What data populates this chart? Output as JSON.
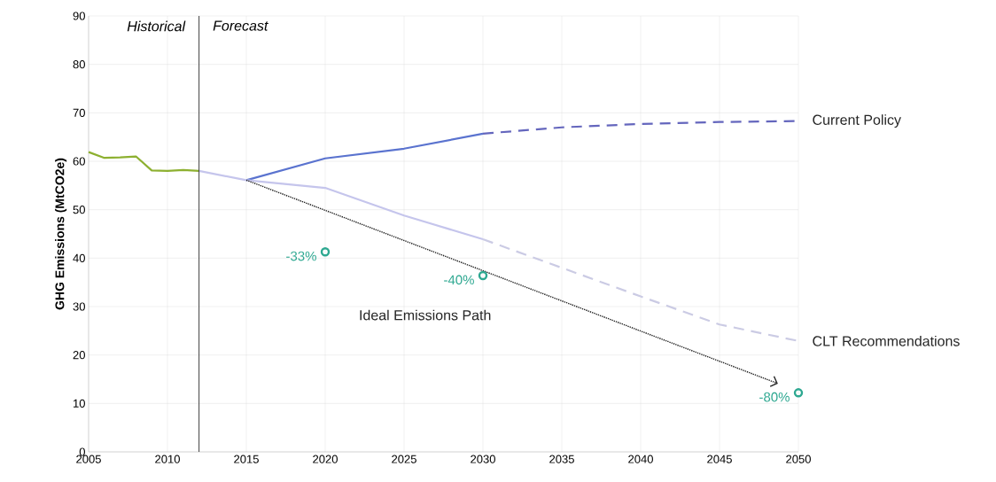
{
  "chart_data": {
    "type": "line",
    "ylabel": "GHG Emissions (MtCO2e)",
    "xlim": [
      2005,
      2050
    ],
    "ylim": [
      0,
      90
    ],
    "xticks": [
      2005,
      2010,
      2015,
      2020,
      2025,
      2030,
      2035,
      2040,
      2045,
      2050
    ],
    "yticks": [
      0,
      10,
      20,
      30,
      40,
      50,
      60,
      70,
      80,
      90
    ],
    "grid": true,
    "ref_lines": [
      {
        "axis": "x",
        "value": 2012,
        "color": "#404040"
      }
    ],
    "annotations": [
      "Historical",
      "Forecast",
      {
        "text": "-33%",
        "x": 2020,
        "y": 41.3
      },
      {
        "text": "-40%",
        "x": 2030,
        "y": 36.4
      },
      {
        "text": "-80%",
        "x": 2050,
        "y": 12.2
      }
    ],
    "series": [
      {
        "color": "#8db030",
        "line_style": "solid",
        "marker": "none",
        "x": [
          2005,
          2006,
          2007,
          2008,
          2009,
          2010,
          2011,
          2012
        ],
        "values": [
          61.9,
          60.7,
          60.8,
          61.0,
          58.1,
          58.0,
          58.2,
          58.0
        ]
      },
      {
        "color": "#5a73cf",
        "line_style": "solid",
        "marker": "none",
        "x": [
          2015,
          2020,
          2025,
          2030
        ],
        "values": [
          56.1,
          60.6,
          62.6,
          65.7
        ]
      },
      {
        "name": "Current Policy",
        "color": "#6466bd",
        "line_style": "dashed",
        "marker": "none",
        "x": [
          2030,
          2035,
          2040,
          2045,
          2050
        ],
        "values": [
          65.7,
          67.0,
          67.7,
          68.1,
          68.3
        ]
      },
      {
        "color": "#c5c5ec",
        "line_style": "solid",
        "marker": "none",
        "x": [
          2012,
          2015,
          2020,
          2025,
          2030
        ],
        "values": [
          58.0,
          56.1,
          54.5,
          48.8,
          43.9
        ]
      },
      {
        "name": "CLT Recommendations",
        "color": "#cbcbe4",
        "line_style": "dashed",
        "marker": "none",
        "x": [
          2030,
          2035,
          2040,
          2045,
          2050
        ],
        "values": [
          43.9,
          38.0,
          32.1,
          26.3,
          22.9
        ]
      },
      {
        "name": "Ideal Emissions Path",
        "color": "#222222",
        "line_style": "dotted",
        "marker": "none",
        "x": [
          2015,
          2048.7
        ],
        "values": [
          56.1,
          14.1
        ]
      },
      {
        "type": "scatter",
        "color": "#2ea891",
        "marker": "circle",
        "x": [
          2020,
          2030,
          2050
        ],
        "values": [
          41.3,
          36.4,
          12.2
        ]
      }
    ]
  }
}
